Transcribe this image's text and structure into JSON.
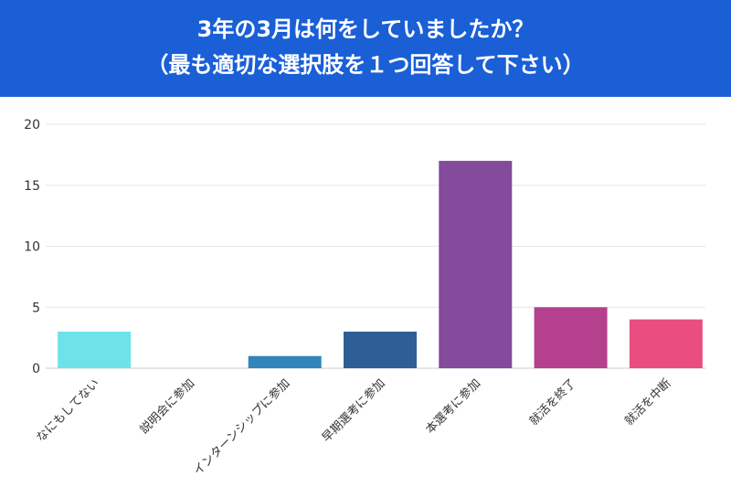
{
  "title": {
    "line1": "3年の3月は何をしていましたか？",
    "line2": "（最も適切な選択肢を１つ回答して下さい）"
  },
  "colors": {
    "header_bg": "#1a5fd6",
    "grid": "#e6e6e6"
  },
  "chart_data": {
    "type": "bar",
    "categories": [
      "なにもしてない",
      "説明会に参加",
      "インターンシップに参加",
      "早期選考に参加",
      "本選考に参加",
      "就活を終了",
      "就活を中断"
    ],
    "values": [
      3,
      0,
      1,
      3,
      17,
      5,
      4
    ],
    "colors": [
      "#6de3e8",
      "#cccccc",
      "#3185ba",
      "#2e5e96",
      "#844a9b",
      "#b5408d",
      "#ea4d7f"
    ],
    "ylim": [
      0,
      20
    ],
    "yticks": [
      0,
      5,
      10,
      15,
      20
    ],
    "grid": true,
    "legend": "none"
  }
}
